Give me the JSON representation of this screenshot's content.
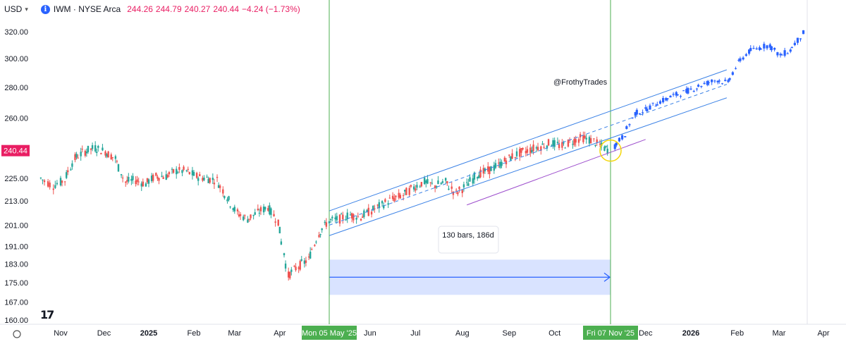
{
  "header": {
    "currency": "USD",
    "info_icon": "info-icon",
    "symbol": "IWM · NYSE Arca",
    "open": "244.26",
    "high": "244.79",
    "low": "240.27",
    "close": "240.44",
    "change": "−4.24 (−1.73%)"
  },
  "logo_text": "TV",
  "colors": {
    "up": "#26a69a",
    "down": "#ef5350",
    "projection": "#2962ff",
    "channel": "#3b82e6",
    "support": "#9c4dcc",
    "marker": "#4caf50",
    "price_badge": "#e91e63",
    "range_fill": "#cfdcff"
  },
  "chart_data": {
    "type": "candlestick",
    "x_axis_labels": [
      "Nov",
      "Dec",
      "2025",
      "Feb",
      "Mar",
      "Apr",
      "Mon 05 May '25",
      "Jun",
      "Jul",
      "Aug",
      "Sep",
      "Oct",
      "Fri 07 Nov '25",
      "Dec",
      "2026",
      "Feb",
      "Mar",
      "Apr"
    ],
    "y_axis_labels": [
      "320.00",
      "300.00",
      "280.00",
      "260.00",
      "240.44",
      "225.00",
      "213.00",
      "201.00",
      "191.00",
      "183.00",
      "175.00",
      "167.00",
      "160.00"
    ],
    "y_scale": "log",
    "ylim": [
      160,
      326
    ],
    "current_price": "240.44",
    "annotation": "@FrothyTrades",
    "measure_label": "130 bars, 186d",
    "price_path": [
      [
        "2024-10-21",
        225
      ],
      [
        "2024-10-28",
        221
      ],
      [
        "2024-11-04",
        224
      ],
      [
        "2024-11-11",
        236
      ],
      [
        "2024-11-18",
        240
      ],
      [
        "2024-11-25",
        242
      ],
      [
        "2024-12-02",
        240
      ],
      [
        "2024-12-09",
        236
      ],
      [
        "2024-12-16",
        223
      ],
      [
        "2024-12-23",
        224
      ],
      [
        "2024-12-30",
        222
      ],
      [
        "2025-01-06",
        226
      ],
      [
        "2025-01-13",
        226
      ],
      [
        "2025-01-20",
        229
      ],
      [
        "2025-01-27",
        229
      ],
      [
        "2025-02-03",
        226
      ],
      [
        "2025-02-10",
        225
      ],
      [
        "2025-02-17",
        224
      ],
      [
        "2025-02-24",
        215
      ],
      [
        "2025-03-03",
        207
      ],
      [
        "2025-03-10",
        204
      ],
      [
        "2025-03-17",
        207
      ],
      [
        "2025-03-24",
        210
      ],
      [
        "2025-03-31",
        203
      ],
      [
        "2025-04-07",
        178
      ],
      [
        "2025-04-14",
        182
      ],
      [
        "2025-04-21",
        185
      ],
      [
        "2025-04-28",
        197
      ],
      [
        "2025-05-05",
        203
      ],
      [
        "2025-05-12",
        204
      ],
      [
        "2025-05-19",
        206
      ],
      [
        "2025-05-26",
        205
      ],
      [
        "2025-06-02",
        208
      ],
      [
        "2025-06-09",
        211
      ],
      [
        "2025-06-16",
        214
      ],
      [
        "2025-06-23",
        216
      ],
      [
        "2025-06-30",
        220
      ],
      [
        "2025-07-07",
        223
      ],
      [
        "2025-07-14",
        221
      ],
      [
        "2025-07-21",
        223
      ],
      [
        "2025-07-28",
        217
      ],
      [
        "2025-08-04",
        221
      ],
      [
        "2025-08-11",
        227
      ],
      [
        "2025-08-18",
        229
      ],
      [
        "2025-08-25",
        232
      ],
      [
        "2025-09-01",
        236
      ],
      [
        "2025-09-08",
        239
      ],
      [
        "2025-09-15",
        241
      ],
      [
        "2025-09-22",
        243
      ],
      [
        "2025-09-29",
        245
      ],
      [
        "2025-10-06",
        243
      ],
      [
        "2025-10-13",
        246
      ],
      [
        "2025-10-20",
        248
      ],
      [
        "2025-10-27",
        246
      ],
      [
        "2025-11-03",
        242
      ],
      [
        "2025-11-07",
        240.44
      ]
    ],
    "projection_path": [
      [
        "2025-11-10",
        243
      ],
      [
        "2025-11-17",
        250
      ],
      [
        "2025-11-24",
        263
      ],
      [
        "2025-12-01",
        265
      ],
      [
        "2025-12-08",
        269
      ],
      [
        "2025-12-15",
        272
      ],
      [
        "2025-12-22",
        275
      ],
      [
        "2025-12-29",
        277
      ],
      [
        "2026-01-05",
        280
      ],
      [
        "2026-01-12",
        283
      ],
      [
        "2026-01-19",
        285
      ],
      [
        "2026-01-26",
        283
      ],
      [
        "2026-02-02",
        297
      ],
      [
        "2026-02-09",
        305
      ],
      [
        "2026-02-16",
        308
      ],
      [
        "2026-02-23",
        310
      ],
      [
        "2026-03-02",
        302
      ],
      [
        "2026-03-09",
        306
      ],
      [
        "2026-03-16",
        316
      ],
      [
        "2026-03-20",
        322
      ]
    ],
    "trendlines": [
      {
        "name": "channel-upper",
        "from": [
          "2025-05-05",
          208
        ],
        "to": [
          "2026-01-25",
          292
        ]
      },
      {
        "name": "channel-mid",
        "from": [
          "2025-05-05",
          201
        ],
        "to": [
          "2026-01-25",
          282
        ],
        "dashed": true
      },
      {
        "name": "channel-lower",
        "from": [
          "2025-05-05",
          196
        ],
        "to": [
          "2026-01-25",
          273
        ]
      },
      {
        "name": "support",
        "from": [
          "2025-08-04",
          211
        ],
        "to": [
          "2025-12-01",
          247
        ]
      }
    ],
    "vertical_markers": [
      "2025-05-05",
      "2025-11-07"
    ],
    "date_range": {
      "from": "2025-05-05",
      "to": "2025-11-07",
      "price_top": 185,
      "price_bottom": 170
    }
  }
}
